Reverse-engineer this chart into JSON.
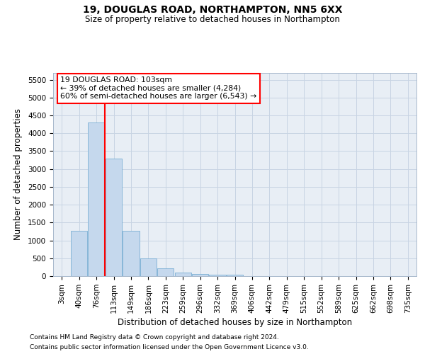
{
  "title_line1": "19, DOUGLAS ROAD, NORTHAMPTON, NN5 6XX",
  "title_line2": "Size of property relative to detached houses in Northampton",
  "xlabel": "Distribution of detached houses by size in Northampton",
  "ylabel": "Number of detached properties",
  "footnote1": "Contains HM Land Registry data © Crown copyright and database right 2024.",
  "footnote2": "Contains public sector information licensed under the Open Government Licence v3.0.",
  "annotation_line1": "19 DOUGLAS ROAD: 103sqm",
  "annotation_line2": "← 39% of detached houses are smaller (4,284)",
  "annotation_line3": "60% of semi-detached houses are larger (6,543) →",
  "bar_color": "#c5d8ed",
  "bar_edge_color": "#7aafd4",
  "vline_color": "red",
  "annotation_box_color": "red",
  "background_color": "#e8eef5",
  "categories": [
    "3sqm",
    "40sqm",
    "76sqm",
    "113sqm",
    "149sqm",
    "186sqm",
    "223sqm",
    "259sqm",
    "296sqm",
    "332sqm",
    "369sqm",
    "406sqm",
    "442sqm",
    "479sqm",
    "515sqm",
    "552sqm",
    "589sqm",
    "625sqm",
    "662sqm",
    "698sqm",
    "735sqm"
  ],
  "bar_heights": [
    0,
    1260,
    4300,
    3290,
    1270,
    490,
    210,
    90,
    55,
    45,
    45,
    0,
    0,
    0,
    0,
    0,
    0,
    0,
    0,
    0,
    0
  ],
  "ylim": [
    0,
    5700
  ],
  "yticks": [
    0,
    500,
    1000,
    1500,
    2000,
    2500,
    3000,
    3500,
    4000,
    4500,
    5000,
    5500
  ],
  "vline_position": 2.5,
  "grid_color": "#c8d4e3",
  "title_fontsize": 10,
  "subtitle_fontsize": 8.5,
  "tick_fontsize": 7.5,
  "ylabel_fontsize": 8.5,
  "xlabel_fontsize": 8.5,
  "footnote_fontsize": 6.5
}
